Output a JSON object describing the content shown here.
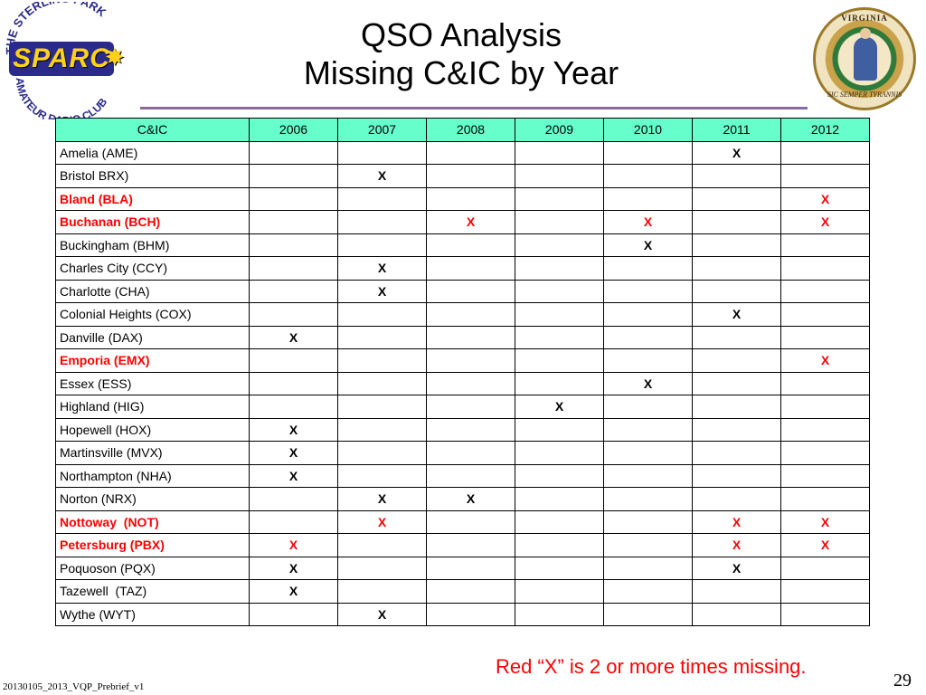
{
  "title": {
    "line1": "QSO Analysis",
    "line2": "Missing C&IC by Year"
  },
  "logos": {
    "left": {
      "icon": "club-logo-icon",
      "arc_text": "THE STERLING PARK",
      "word": "SPARC",
      "bottom_text": "AMATEUR RADIO CLUB"
    },
    "right": {
      "icon": "virginia-seal-icon",
      "ring_text": "VIRGINIA",
      "motto": "SIC SEMPER TYRANNIS"
    }
  },
  "table": {
    "columns": [
      "C&IC",
      "2006",
      "2007",
      "2008",
      "2009",
      "2010",
      "2011",
      "2012"
    ],
    "rows": [
      {
        "name": "Amelia (AME)",
        "red": false,
        "marks": [
          "",
          "",
          "",
          "",
          "",
          "X",
          ""
        ]
      },
      {
        "name": "Bristol BRX)",
        "red": false,
        "marks": [
          "",
          "X",
          "",
          "",
          "",
          "",
          ""
        ]
      },
      {
        "name": "Bland (BLA)",
        "red": true,
        "marks": [
          "",
          "",
          "",
          "",
          "",
          "",
          "X"
        ]
      },
      {
        "name": "Buchanan (BCH)",
        "red": true,
        "marks": [
          "",
          "",
          "X",
          "",
          "X",
          "",
          "X"
        ]
      },
      {
        "name": "Buckingham (BHM)",
        "red": false,
        "marks": [
          "",
          "",
          "",
          "",
          "X",
          "",
          ""
        ]
      },
      {
        "name": "Charles City (CCY)",
        "red": false,
        "marks": [
          "",
          "X",
          "",
          "",
          "",
          "",
          ""
        ]
      },
      {
        "name": "Charlotte (CHA)",
        "red": false,
        "marks": [
          "",
          "X",
          "",
          "",
          "",
          "",
          ""
        ]
      },
      {
        "name": "Colonial Heights (COX)",
        "red": false,
        "marks": [
          "",
          "",
          "",
          "",
          "",
          "X",
          ""
        ]
      },
      {
        "name": "Danville (DAX)",
        "red": false,
        "marks": [
          "X",
          "",
          "",
          "",
          "",
          "",
          ""
        ]
      },
      {
        "name": "Emporia (EMX)",
        "red": true,
        "marks": [
          "",
          "",
          "",
          "",
          "",
          "",
          "X"
        ]
      },
      {
        "name": "Essex (ESS)",
        "red": false,
        "marks": [
          "",
          "",
          "",
          "",
          "X",
          "",
          ""
        ]
      },
      {
        "name": "Highland (HIG)",
        "red": false,
        "marks": [
          "",
          "",
          "",
          "X",
          "",
          "",
          ""
        ]
      },
      {
        "name": "Hopewell (HOX)",
        "red": false,
        "marks": [
          "X",
          "",
          "",
          "",
          "",
          "",
          ""
        ]
      },
      {
        "name": "Martinsville (MVX)",
        "red": false,
        "marks": [
          "X",
          "",
          "",
          "",
          "",
          "",
          ""
        ]
      },
      {
        "name": "Northampton (NHA)",
        "red": false,
        "marks": [
          "X",
          "",
          "",
          "",
          "",
          "",
          ""
        ]
      },
      {
        "name": "Norton (NRX)",
        "red": false,
        "marks": [
          "",
          "X",
          "X",
          "",
          "",
          "",
          ""
        ]
      },
      {
        "name": "Nottoway  (NOT)",
        "red": true,
        "marks": [
          "",
          "X",
          "",
          "",
          "",
          "X",
          "X"
        ]
      },
      {
        "name": "Petersburg (PBX)",
        "red": true,
        "marks": [
          "X",
          "",
          "",
          "",
          "",
          "X",
          "X"
        ]
      },
      {
        "name": "Poquoson (PQX)",
        "red": false,
        "marks": [
          "X",
          "",
          "",
          "",
          "",
          "X",
          ""
        ]
      },
      {
        "name": "Tazewell  (TAZ)",
        "red": false,
        "marks": [
          "X",
          "",
          "",
          "",
          "",
          "",
          ""
        ]
      },
      {
        "name": "Wythe (WYT)",
        "red": false,
        "marks": [
          "",
          "X",
          "",
          "",
          "",
          "",
          ""
        ]
      }
    ]
  },
  "note": "Red “X” is 2 or more times missing.",
  "footer": "20130105_2013_VQP_Prebrief_v1",
  "page_number": "29",
  "colors": {
    "header_bg": "#66ffcc",
    "highlight": "#ff0000",
    "rule": "#8a6a9e"
  }
}
